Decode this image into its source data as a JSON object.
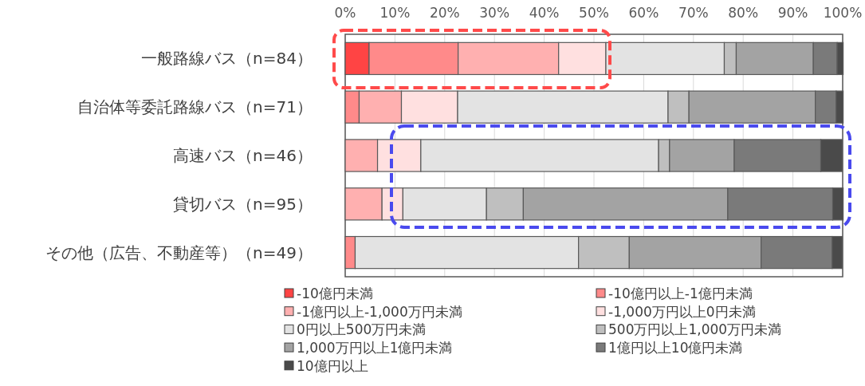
{
  "chart_data": {
    "type": "bar",
    "orientation": "horizontal",
    "stacked": true,
    "grid": "x",
    "legend": "bottom",
    "categories": [
      "一般路線バス（n=84）",
      "自治体等委託路線バス（n=71）",
      "高速バス（n=46）",
      "貸切バス（n=95）",
      "その他（広告、不動産等）（n=49）"
    ],
    "xlim": [
      0,
      100
    ],
    "xticks": [
      {
        "value": 0,
        "label": "0%"
      },
      {
        "value": 10,
        "label": "10%"
      },
      {
        "value": 20,
        "label": "20%"
      },
      {
        "value": 30,
        "label": "30%"
      },
      {
        "value": 40,
        "label": "40%"
      },
      {
        "value": 50,
        "label": "50%"
      },
      {
        "value": 60,
        "label": "60%"
      },
      {
        "value": 70,
        "label": "70%"
      },
      {
        "value": 80,
        "label": "80%"
      },
      {
        "value": 90,
        "label": "90%"
      },
      {
        "value": 100,
        "label": "100%"
      }
    ],
    "series": [
      {
        "name": "-10億円未満",
        "color": "#ff4444",
        "values": [
          4.8,
          0,
          0,
          0,
          0
        ]
      },
      {
        "name": "-10億円以上-1億円未満",
        "color": "#ff8a8a",
        "values": [
          17.9,
          2.8,
          0,
          0,
          2.0
        ]
      },
      {
        "name": "-1億円以上-1,000万円未満",
        "color": "#ffb0b0",
        "values": [
          20.2,
          8.5,
          6.5,
          7.4,
          0
        ]
      },
      {
        "name": "-1,000万円以上0円未満",
        "color": "#ffe0e0",
        "values": [
          9.5,
          11.3,
          8.7,
          4.2,
          0
        ]
      },
      {
        "name": "0円以上500万円未満",
        "color": "#e3e3e3",
        "values": [
          23.8,
          42.3,
          47.8,
          16.8,
          44.9
        ]
      },
      {
        "name": "500万円以上1,000万円未満",
        "color": "#bfbfbf",
        "values": [
          2.4,
          4.2,
          2.2,
          7.4,
          10.2
        ]
      },
      {
        "name": "1,000万円以上1億円未満",
        "color": "#a3a3a3",
        "values": [
          15.5,
          25.4,
          13.0,
          41.1,
          26.5
        ]
      },
      {
        "name": "1億円以上10億円未満",
        "color": "#7a7a7a",
        "values": [
          4.8,
          4.2,
          17.4,
          21.1,
          14.3
        ]
      },
      {
        "name": "10億円以上",
        "color": "#4a4a4a",
        "values": [
          1.2,
          1.4,
          4.3,
          2.1,
          2.0
        ]
      }
    ]
  }
}
